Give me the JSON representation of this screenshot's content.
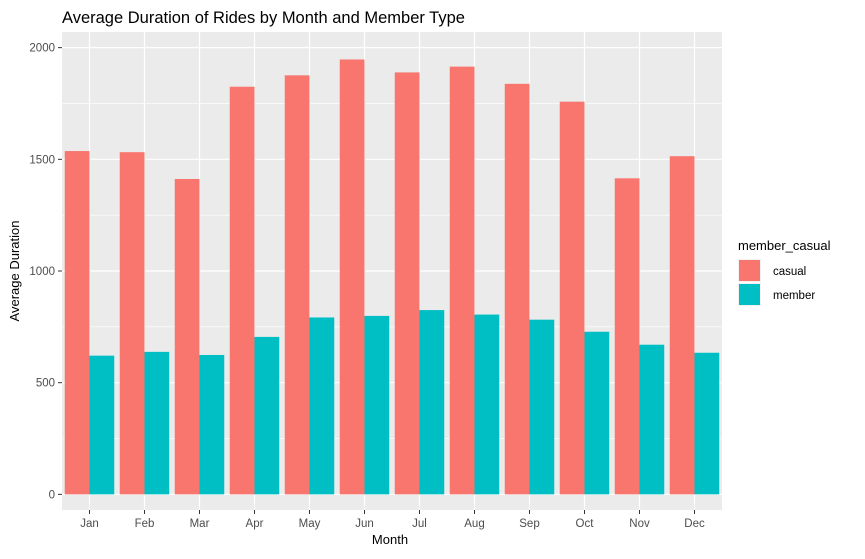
{
  "chart_data": {
    "type": "bar",
    "title": "Average Duration of Rides by Month and Member Type",
    "xlabel": "Month",
    "ylabel": "Average Duration",
    "categories": [
      "Jan",
      "Feb",
      "Mar",
      "Apr",
      "May",
      "Jun",
      "Jul",
      "Aug",
      "Sep",
      "Oct",
      "Nov",
      "Dec"
    ],
    "series": [
      {
        "name": "casual",
        "color": "#F8766D",
        "values": [
          1537,
          1532,
          1412,
          1825,
          1876,
          1947,
          1889,
          1915,
          1838,
          1758,
          1415,
          1514
        ]
      },
      {
        "name": "member",
        "color": "#00BFC4",
        "values": [
          621,
          638,
          624,
          705,
          792,
          799,
          825,
          805,
          782,
          728,
          670,
          634
        ]
      }
    ],
    "ylim": [
      -70,
      2070
    ],
    "yticks": [
      0,
      500,
      1000,
      1500,
      2000
    ],
    "ytick_labels": [
      "0",
      "500",
      "1000",
      "1500",
      "2000"
    ],
    "grid": true,
    "legend": {
      "title": "member_casual",
      "position": "right"
    }
  }
}
